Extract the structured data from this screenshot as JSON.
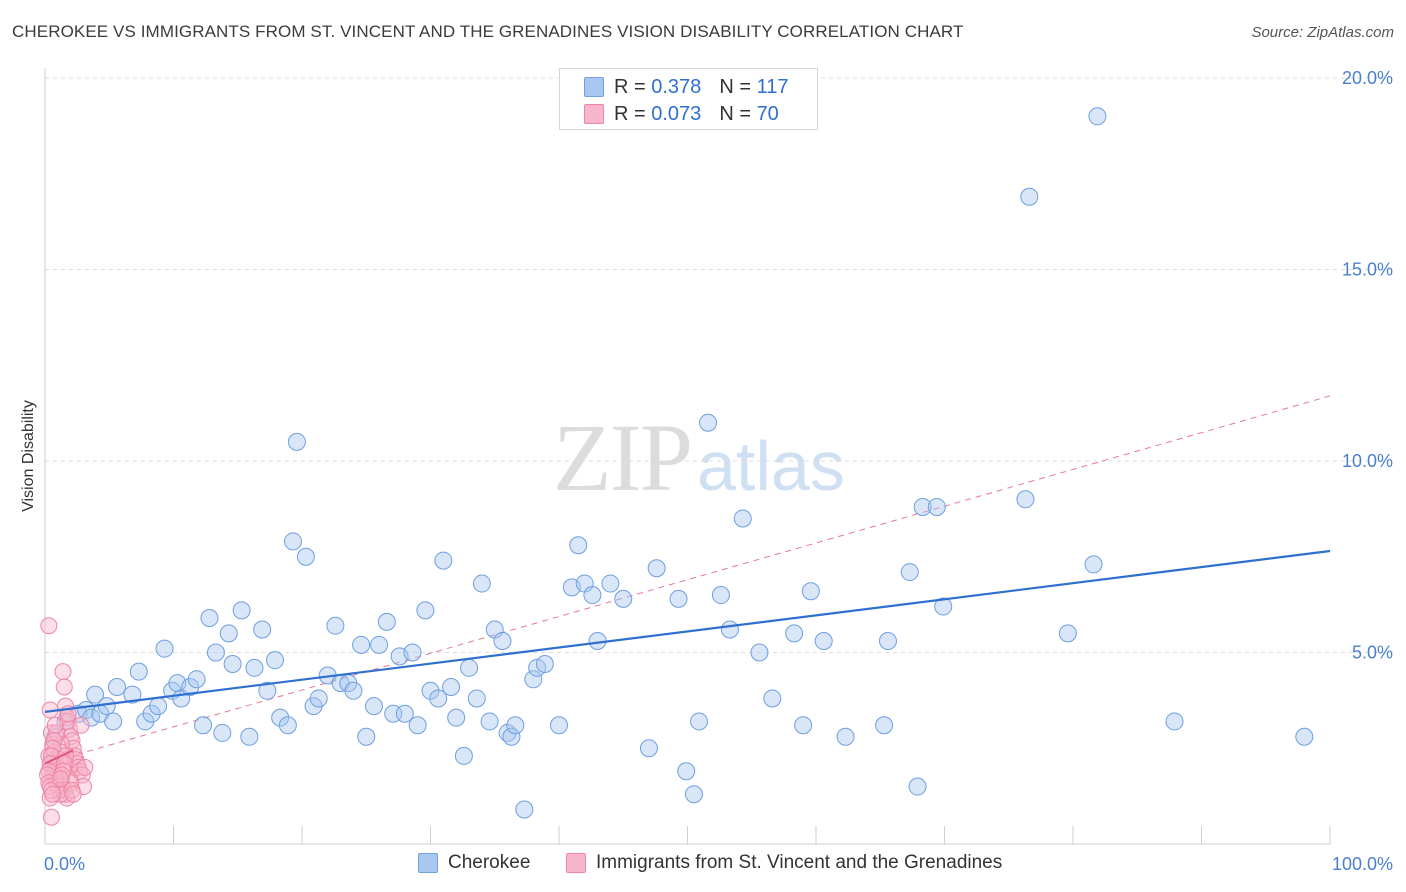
{
  "title": "CHEROKEE VS IMMIGRANTS FROM ST. VINCENT AND THE GRENADINES VISION DISABILITY CORRELATION CHART",
  "source": "Source: ZipAtlas.com",
  "watermark": {
    "zip": "ZIP",
    "atlas": "atlas"
  },
  "legend": {
    "rows": [
      {
        "r_label": "R =",
        "r_value": "0.378",
        "n_label": "N =",
        "n_value": "117"
      },
      {
        "r_label": "R =",
        "r_value": "0.073",
        "n_label": "N =",
        "n_value": "70"
      }
    ]
  },
  "colors": {
    "blue_fill": "#a9c8ef",
    "blue_stroke": "#6f9fe0",
    "blue_line": "#2f6fd0",
    "pink_fill": "#f7b6c9",
    "pink_stroke": "#ee85a6",
    "pink_line": "#e0567f",
    "axis_text": "#4a7fcf",
    "grid": "#dcdcdc"
  },
  "chart_data": {
    "type": "scatter",
    "title": "CHEROKEE VS IMMIGRANTS FROM ST. VINCENT AND THE GRENADINES VISION DISABILITY CORRELATION CHART",
    "xlabel": "",
    "ylabel": "Vision Disability",
    "xlim": [
      0,
      100
    ],
    "ylim": [
      0,
      20.5
    ],
    "x_tick_labels": [
      "0.0%",
      "100.0%"
    ],
    "y_ticks": [
      5,
      10,
      15,
      20
    ],
    "y_tick_labels": [
      "5.0%",
      "10.0%",
      "15.0%",
      "20.0%"
    ],
    "grid": true,
    "legend_placement": "top-center",
    "series": [
      {
        "name": "Cherokee",
        "r": 0.378,
        "n": 117,
        "trend": {
          "x": [
            0,
            100
          ],
          "y": [
            3.45,
            7.65
          ],
          "style": "solid"
        },
        "points": [
          [
            0.8,
            2.8
          ],
          [
            1.6,
            3.2
          ],
          [
            2.6,
            3.4
          ],
          [
            3.2,
            3.5
          ],
          [
            3.6,
            3.3
          ],
          [
            3.9,
            3.9
          ],
          [
            4.3,
            3.4
          ],
          [
            4.8,
            3.6
          ],
          [
            5.3,
            3.2
          ],
          [
            5.6,
            4.1
          ],
          [
            6.8,
            3.9
          ],
          [
            7.3,
            4.5
          ],
          [
            7.8,
            3.2
          ],
          [
            8.3,
            3.4
          ],
          [
            8.8,
            3.6
          ],
          [
            9.3,
            5.1
          ],
          [
            9.9,
            4.0
          ],
          [
            10.3,
            4.2
          ],
          [
            10.6,
            3.8
          ],
          [
            11.3,
            4.1
          ],
          [
            11.8,
            4.3
          ],
          [
            12.3,
            3.1
          ],
          [
            12.8,
            5.9
          ],
          [
            13.3,
            5.0
          ],
          [
            13.8,
            2.9
          ],
          [
            14.3,
            5.5
          ],
          [
            14.6,
            4.7
          ],
          [
            15.3,
            6.1
          ],
          [
            15.9,
            2.8
          ],
          [
            16.3,
            4.6
          ],
          [
            16.9,
            5.6
          ],
          [
            17.3,
            4.0
          ],
          [
            17.9,
            4.8
          ],
          [
            18.3,
            3.3
          ],
          [
            18.9,
            3.1
          ],
          [
            19.3,
            7.9
          ],
          [
            19.6,
            10.5
          ],
          [
            20.3,
            7.5
          ],
          [
            20.9,
            3.6
          ],
          [
            21.3,
            3.8
          ],
          [
            22.0,
            4.4
          ],
          [
            22.6,
            5.7
          ],
          [
            23.0,
            4.2
          ],
          [
            23.6,
            4.2
          ],
          [
            24.0,
            4.0
          ],
          [
            24.6,
            5.2
          ],
          [
            25.0,
            2.8
          ],
          [
            25.6,
            3.6
          ],
          [
            26.0,
            5.2
          ],
          [
            26.6,
            5.8
          ],
          [
            27.1,
            3.4
          ],
          [
            27.6,
            4.9
          ],
          [
            28.0,
            3.4
          ],
          [
            28.6,
            5.0
          ],
          [
            29.0,
            3.1
          ],
          [
            29.6,
            6.1
          ],
          [
            30.0,
            4.0
          ],
          [
            30.6,
            3.8
          ],
          [
            31.0,
            7.4
          ],
          [
            31.6,
            4.1
          ],
          [
            32.0,
            3.3
          ],
          [
            32.6,
            2.3
          ],
          [
            33.0,
            4.6
          ],
          [
            33.6,
            3.8
          ],
          [
            34.0,
            6.8
          ],
          [
            34.6,
            3.2
          ],
          [
            35.0,
            5.6
          ],
          [
            35.6,
            5.3
          ],
          [
            36.0,
            2.9
          ],
          [
            36.3,
            2.8
          ],
          [
            36.6,
            3.1
          ],
          [
            37.3,
            0.9
          ],
          [
            38.0,
            4.3
          ],
          [
            38.3,
            4.6
          ],
          [
            38.9,
            4.7
          ],
          [
            40.0,
            3.1
          ],
          [
            41.0,
            6.7
          ],
          [
            41.5,
            7.8
          ],
          [
            42.0,
            6.8
          ],
          [
            42.6,
            6.5
          ],
          [
            43.0,
            5.3
          ],
          [
            44.0,
            6.8
          ],
          [
            45.0,
            6.4
          ],
          [
            47.0,
            2.5
          ],
          [
            47.6,
            7.2
          ],
          [
            49.3,
            6.4
          ],
          [
            49.9,
            1.9
          ],
          [
            50.5,
            1.3
          ],
          [
            50.9,
            3.2
          ],
          [
            51.6,
            11.0
          ],
          [
            52.6,
            6.5
          ],
          [
            53.3,
            5.6
          ],
          [
            54.3,
            8.5
          ],
          [
            55.6,
            5.0
          ],
          [
            56.6,
            3.8
          ],
          [
            58.3,
            5.5
          ],
          [
            59.0,
            3.1
          ],
          [
            59.6,
            6.6
          ],
          [
            60.6,
            5.3
          ],
          [
            62.3,
            2.8
          ],
          [
            65.3,
            3.1
          ],
          [
            65.6,
            5.3
          ],
          [
            67.3,
            7.1
          ],
          [
            67.9,
            1.5
          ],
          [
            68.3,
            8.8
          ],
          [
            69.4,
            8.8
          ],
          [
            69.9,
            6.2
          ],
          [
            76.3,
            9.0
          ],
          [
            76.6,
            16.9
          ],
          [
            79.6,
            5.5
          ],
          [
            81.6,
            7.3
          ],
          [
            81.9,
            19.0
          ],
          [
            98.0,
            2.8
          ],
          [
            87.9,
            3.2
          ]
        ]
      },
      {
        "name": "Immigrants from St. Vincent and the Grenadines",
        "r": 0.073,
        "n": 70,
        "trend": {
          "x": [
            0,
            100
          ],
          "y": [
            2.1,
            11.7
          ],
          "style": "dashed"
        },
        "trend_short": {
          "x": [
            0,
            2.2
          ],
          "y": [
            2.1,
            2.45
          ],
          "style": "solid"
        },
        "points": [
          [
            0.3,
            5.7
          ],
          [
            0.4,
            3.5
          ],
          [
            0.5,
            2.9
          ],
          [
            0.6,
            2.6
          ],
          [
            0.7,
            2.4
          ],
          [
            0.8,
            2.2
          ],
          [
            0.9,
            2.0
          ],
          [
            1.0,
            1.9
          ],
          [
            1.1,
            1.8
          ],
          [
            1.2,
            1.7
          ],
          [
            1.3,
            1.6
          ],
          [
            1.4,
            1.5
          ],
          [
            1.5,
            1.4
          ],
          [
            1.6,
            1.3
          ],
          [
            1.7,
            1.2
          ],
          [
            0.3,
            2.3
          ],
          [
            0.5,
            2.1
          ],
          [
            0.6,
            1.9
          ],
          [
            0.7,
            1.8
          ],
          [
            0.8,
            1.7
          ],
          [
            0.9,
            1.6
          ],
          [
            1.0,
            1.5
          ],
          [
            1.1,
            1.4
          ],
          [
            1.2,
            1.3
          ],
          [
            0.4,
            1.2
          ],
          [
            0.5,
            0.7
          ],
          [
            1.4,
            4.5
          ],
          [
            1.5,
            4.1
          ],
          [
            1.6,
            3.6
          ],
          [
            1.7,
            3.3
          ],
          [
            1.8,
            3.2
          ],
          [
            1.9,
            3.0
          ],
          [
            2.0,
            2.8
          ],
          [
            2.1,
            2.7
          ],
          [
            2.2,
            2.5
          ],
          [
            2.3,
            2.3
          ],
          [
            2.4,
            2.2
          ],
          [
            2.5,
            2.1
          ],
          [
            2.6,
            2.0
          ],
          [
            2.7,
            1.9
          ],
          [
            1.3,
            2.6
          ],
          [
            1.2,
            2.4
          ],
          [
            1.1,
            2.2
          ],
          [
            1.0,
            2.0
          ],
          [
            0.9,
            2.9
          ],
          [
            0.8,
            3.1
          ],
          [
            0.7,
            2.7
          ],
          [
            0.6,
            2.5
          ],
          [
            0.5,
            2.3
          ],
          [
            0.4,
            2.1
          ],
          [
            0.3,
            1.9
          ],
          [
            0.2,
            1.8
          ],
          [
            0.3,
            1.6
          ],
          [
            0.4,
            1.5
          ],
          [
            0.5,
            1.4
          ],
          [
            0.6,
            1.3
          ],
          [
            2.8,
            3.1
          ],
          [
            2.9,
            1.8
          ],
          [
            3.0,
            1.5
          ],
          [
            3.1,
            2.0
          ],
          [
            1.9,
            1.7
          ],
          [
            2.0,
            1.6
          ],
          [
            2.1,
            1.4
          ],
          [
            2.2,
            1.3
          ],
          [
            1.8,
            3.4
          ],
          [
            1.6,
            2.3
          ],
          [
            1.5,
            2.1
          ],
          [
            1.4,
            1.9
          ],
          [
            1.3,
            1.8
          ],
          [
            1.2,
            1.7
          ]
        ]
      }
    ]
  },
  "bottom_legend": [
    {
      "label": "Cherokee"
    },
    {
      "label": "Immigrants from St. Vincent and the Grenadines"
    }
  ]
}
